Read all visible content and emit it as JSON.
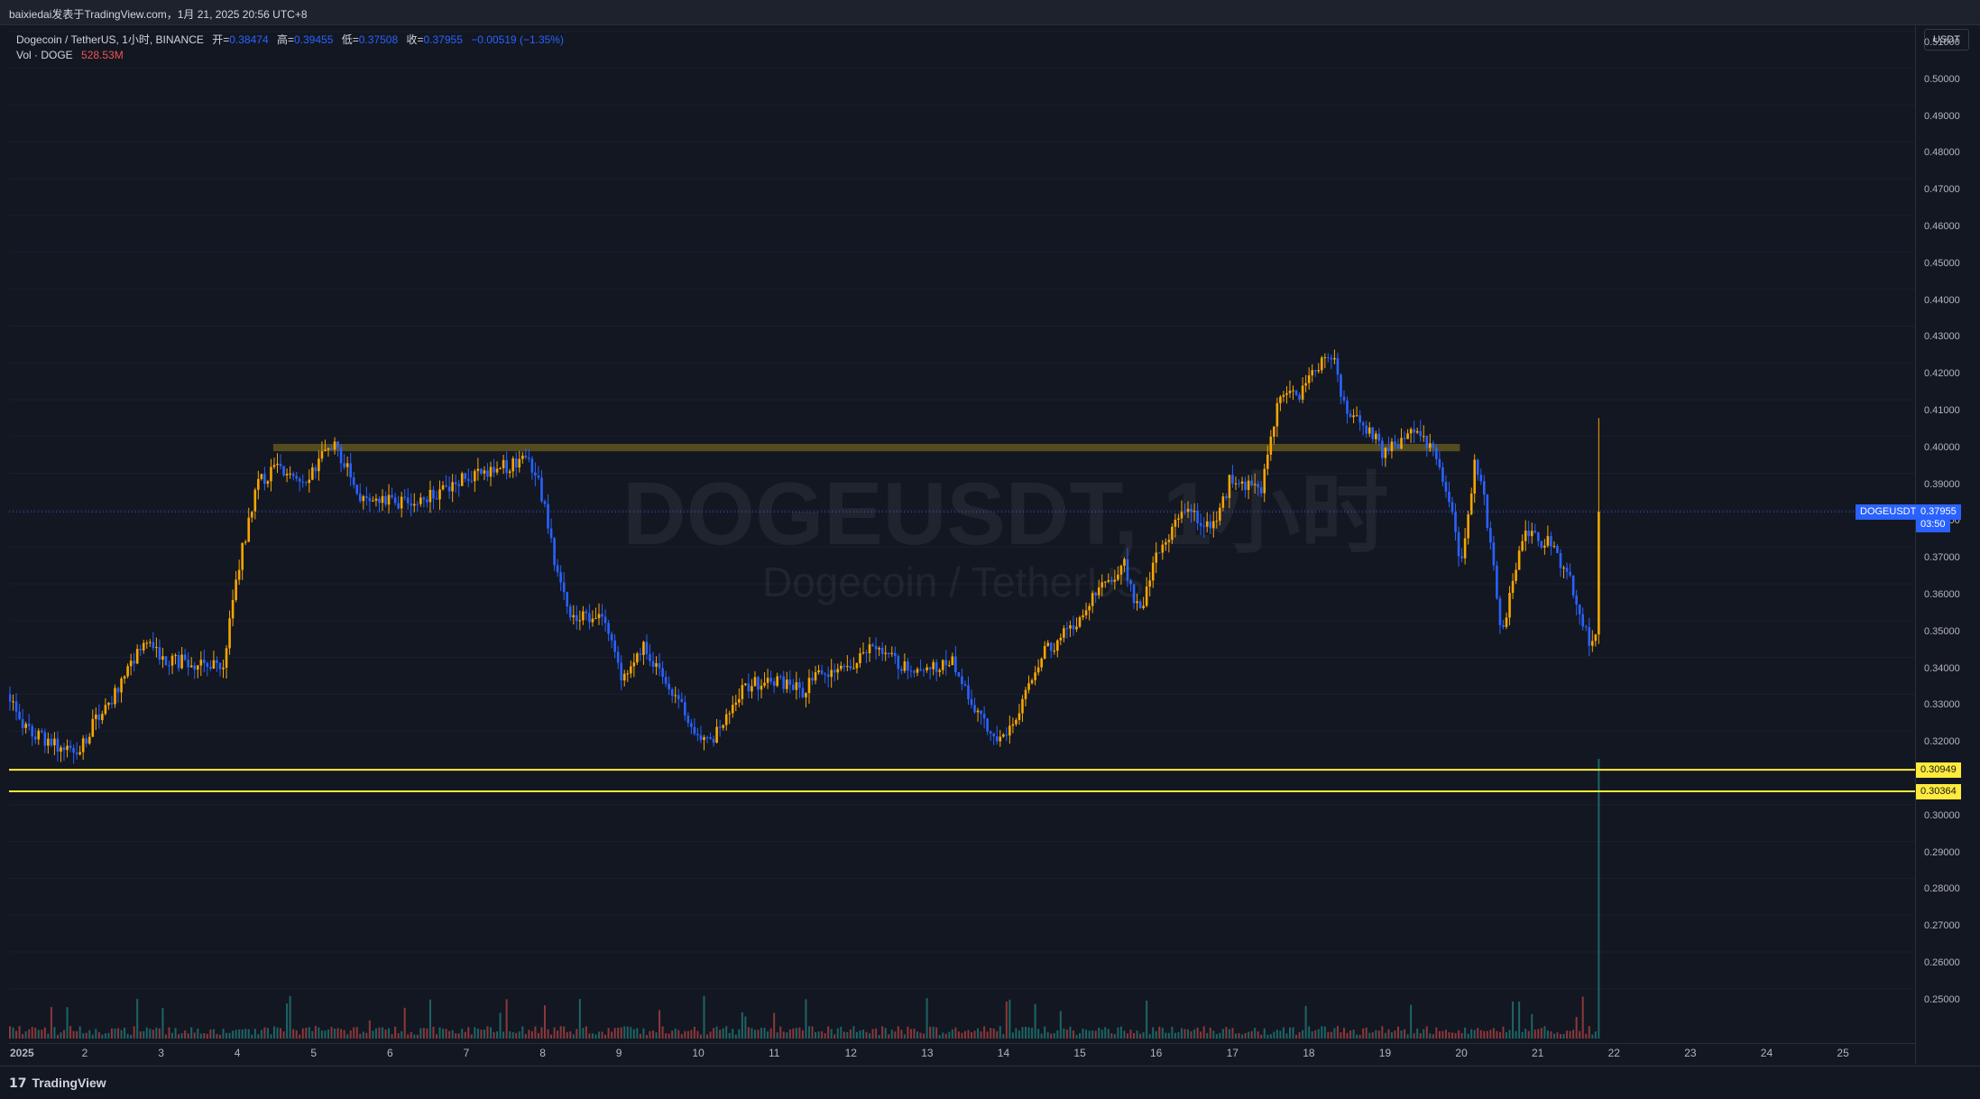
{
  "caption": "baixiedai发表于TradingView.com，1月 21, 2025 20:56 UTC+8",
  "legend": {
    "symbol_line": "Dogecoin / TetherUS, 1小时, BINANCE",
    "open_label": "开=",
    "open": "0.38474",
    "high_label": "高=",
    "high": "0.39455",
    "low_label": "低=",
    "low": "0.37508",
    "close_label": "收=",
    "close": "0.37955",
    "change": "−0.00519 (−1.35%)",
    "vol_label": "Vol · DOGE",
    "vol": "528.53M"
  },
  "watermark": {
    "symbol": "DOGEUSDT, 1小时",
    "name": "Dogecoin / TetherUS"
  },
  "price_axis": {
    "currency": "USDT",
    "ticks": [
      "0.51000",
      "0.50000",
      "0.49000",
      "0.48000",
      "0.47000",
      "0.46000",
      "0.45000",
      "0.44000",
      "0.43000",
      "0.42000",
      "0.41000",
      "0.40000",
      "0.39000",
      "0.38000",
      "0.37000",
      "0.36000",
      "0.35000",
      "0.34000",
      "0.33000",
      "0.32000",
      "0.30000",
      "0.29000",
      "0.28000",
      "0.27000",
      "0.26000",
      "0.25000"
    ]
  },
  "time_axis": {
    "labels": [
      "2025",
      "2",
      "3",
      "4",
      "5",
      "6",
      "7",
      "8",
      "9",
      "10",
      "11",
      "12",
      "13",
      "14",
      "15",
      "16",
      "17",
      "18",
      "19",
      "20",
      "21",
      "22",
      "23",
      "24",
      "25"
    ]
  },
  "tags": {
    "symbol": "DOGEUSDT",
    "last_price": "0.37955",
    "countdown": "03:50",
    "support1": "0.30949",
    "support2": "0.30364"
  },
  "levels": {
    "resistance_band": [
      0.396,
      0.398
    ],
    "support1": 0.30949,
    "support2": 0.30364,
    "last_price": 0.37955
  },
  "colors": {
    "up": "#f7a600",
    "down": "#2962ff",
    "vol_up": "#26a69a",
    "vol_down": "#ef5350",
    "support_line": "#ffeb3b",
    "band": "#6b5d1f",
    "background": "#131722"
  },
  "footer": {
    "brand": "TradingView"
  }
}
